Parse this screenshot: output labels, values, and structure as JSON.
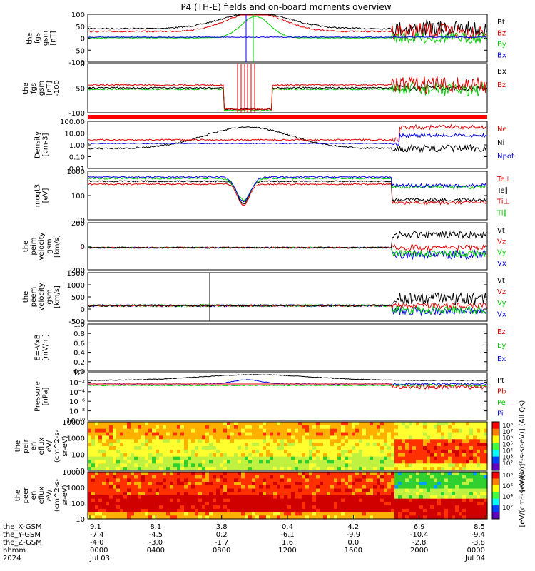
{
  "title": "P4 (TH-E) fields and on-board moments overview",
  "colors": {
    "black": "#000000",
    "red": "#e00000",
    "green": "#00d000",
    "blue": "#0000e0",
    "orbit_bar": "#ff0000"
  },
  "time_axis": {
    "rows": [
      {
        "label": "the_X-GSM",
        "values": [
          "9.1",
          "8.1",
          "3.8",
          "0.4",
          "4.2",
          "6.9",
          "8.5"
        ]
      },
      {
        "label": "the_Y-GSM",
        "values": [
          "-7.4",
          "-4.5",
          "0.2",
          "-6.1",
          "-9.9",
          "-10.4",
          "-9.4"
        ]
      },
      {
        "label": "the_Z-GSM",
        "values": [
          "-4.0",
          "-3.0",
          "-1.7",
          "1.6",
          "0.0",
          "-2.8",
          "-3.8"
        ]
      },
      {
        "label": "hhmm",
        "values": [
          "0000",
          "0400",
          "0800",
          "1200",
          "1600",
          "2000",
          "0000"
        ]
      },
      {
        "label": "2024",
        "values": [
          "Jul 03",
          "",
          "",
          "",
          "",
          "",
          "Jul 04"
        ]
      }
    ]
  },
  "chart_data": [
    {
      "type": "line",
      "id": "fgs",
      "ylabel": [
        "the",
        "fgs",
        "gsm",
        "[nT]"
      ],
      "yticks": [
        "100",
        "50",
        "0",
        "-50",
        "-100"
      ],
      "ylim": [
        -100,
        100
      ],
      "legend": [
        "Bt",
        "Bz",
        "By",
        "Bx"
      ],
      "legend_colors": [
        "#000000",
        "#e00000",
        "#00d000",
        "#0000e0"
      ]
    },
    {
      "type": "line",
      "id": "fgs_gse",
      "ylabel": [
        "the",
        "fgs",
        "gsm",
        "[nT]",
        "-100"
      ],
      "yticks": [
        "0",
        "-50",
        "-100"
      ],
      "ylim": [
        -120,
        40
      ],
      "legend": [
        "Bx",
        "Bz"
      ],
      "legend_colors": [
        "#000000",
        "#e00000"
      ]
    },
    {
      "type": "line",
      "id": "density",
      "log": true,
      "ylabel": [
        "Density",
        "[cm-3]"
      ],
      "yticks": [
        "100.00",
        "10.00",
        "1.00",
        "0.10",
        "0.01"
      ],
      "ylim": [
        0.003,
        300
      ],
      "legend": [
        "Ne",
        "Ni",
        "Npot"
      ],
      "legend_colors": [
        "#e00000",
        "#000000",
        "#0000e0"
      ]
    },
    {
      "type": "line",
      "id": "temperature",
      "log": true,
      "ylabel": [
        "moqt3",
        "[eV]"
      ],
      "yticks": [
        "1000",
        "100",
        "10"
      ],
      "ylim": [
        3,
        3000
      ],
      "legend": [
        "Te⊥",
        "Te∥",
        "Ti⊥",
        "Ti∥"
      ],
      "legend_colors": [
        "#e00000",
        "#000000",
        "#e00000",
        "#00d000"
      ]
    },
    {
      "type": "line",
      "id": "peim_velocity",
      "ylabel": [
        "the",
        "peim",
        "velocity",
        "gsm",
        "[km/s]"
      ],
      "yticks": [
        "200",
        "0",
        "-200"
      ],
      "ylim": [
        -300,
        350
      ],
      "legend": [
        "Vt",
        "Vz",
        "Vy",
        "Vx"
      ],
      "legend_colors": [
        "#000000",
        "#e00000",
        "#00d000",
        "#0000e0"
      ]
    },
    {
      "type": "line",
      "id": "peem_velocity",
      "ylabel": [
        "the",
        "peem",
        "velocity",
        "gsm",
        "[km/s]"
      ],
      "yticks": [
        "1500",
        "1000",
        "500",
        "0",
        "-500"
      ],
      "ylim": [
        -700,
        1500
      ],
      "legend": [
        "Vt",
        "Vz",
        "Vy",
        "Vx"
      ],
      "legend_colors": [
        "#000000",
        "#e00000",
        "#00d000",
        "#0000e0"
      ]
    },
    {
      "type": "line",
      "id": "efield",
      "ylabel": [
        "E=-VxB",
        "[mV/m]"
      ],
      "yticks": [
        "1.0",
        "0.8",
        "0.6",
        "0.4",
        "0.2",
        "0.0"
      ],
      "ylim": [
        0,
        1
      ],
      "legend": [
        "Ez",
        "Ey",
        "Ex"
      ],
      "legend_colors": [
        "#e00000",
        "#00d000",
        "#0000e0"
      ]
    },
    {
      "type": "line",
      "id": "pressure",
      "log": true,
      "ylabel": [
        "Pressure",
        "[nPa]"
      ],
      "yticks": [
        "10⁰",
        "10⁻²",
        "10⁻⁴",
        "10⁻⁶",
        "10⁻⁸",
        "10⁻¹⁰"
      ],
      "ylim": [
        1e-10,
        10
      ],
      "legend": [
        "Pt",
        "Pb",
        "Pe",
        "Pi"
      ],
      "legend_colors": [
        "#000000",
        "#e00000",
        "#00d000",
        "#0000e0"
      ]
    },
    {
      "type": "heatmap",
      "id": "peir_eflux",
      "ylabel": [
        "the",
        "peir",
        "en",
        "eflux",
        "eV/",
        "(cm^2-s-",
        "sr-eV)"
      ],
      "yticks": [
        "10000",
        "1000",
        "100",
        "10"
      ],
      "ylim": [
        10,
        30000
      ],
      "colorbar_ticks": [
        "10⁸",
        "10⁷",
        "10⁶",
        "10⁵",
        "10⁴",
        "10³",
        "10²"
      ],
      "colorbar_label": "[eV/(cm²-s-sr-eV)] (All Qs)"
    },
    {
      "type": "heatmap",
      "id": "peer_eflux",
      "ylabel": [
        "the",
        "peer",
        "en",
        "eflux",
        "eV/",
        "(cm^2-s-",
        "sr-eV)"
      ],
      "yticks": [
        "10000",
        "1000",
        "100",
        "10"
      ],
      "ylim": [
        10,
        30000
      ],
      "colorbar_ticks": [
        "10⁸",
        "10⁶",
        "10⁴",
        "10²"
      ],
      "colorbar_label": "[eV/(cm²-s-sr-eV)]"
    }
  ]
}
